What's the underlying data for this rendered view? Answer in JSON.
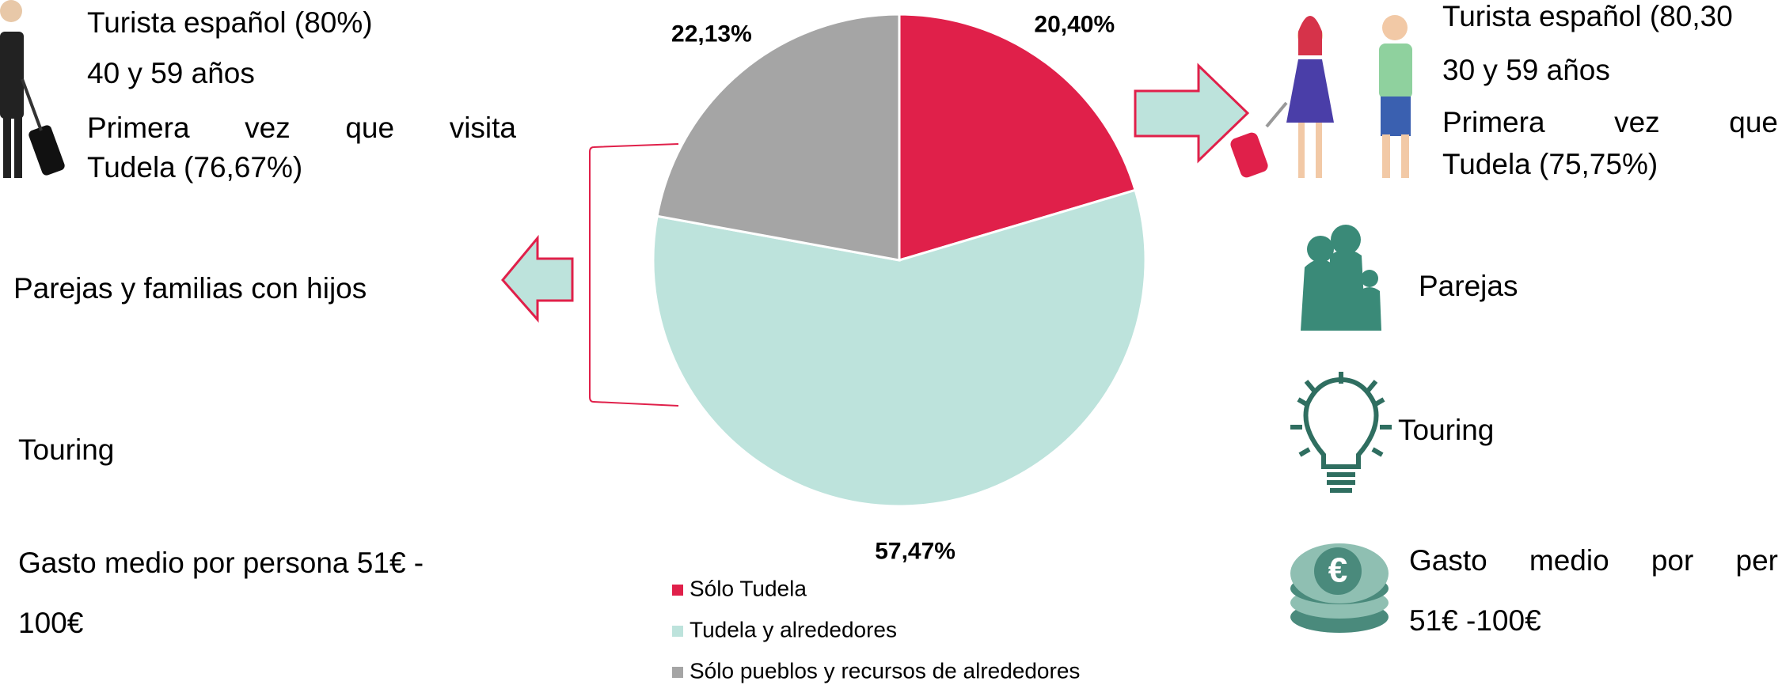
{
  "left_profile": {
    "lines": [
      "Turista español (80%)",
      "40 y 59 años",
      "Primera vez que visita",
      "Tudela (76,67%)"
    ],
    "group": "Parejas y familias con hijos",
    "trip": "Touring",
    "spend": [
      "Gasto medio por persona 51€ -",
      "100€"
    ]
  },
  "right_profile": {
    "lines": [
      "Turista español (80,30",
      "30 y 59 años",
      "Primera vez que",
      "Tudela (75,75%)"
    ],
    "group": "Parejas",
    "trip": "Touring",
    "spend": [
      "Gasto medio por per",
      "51€ -100€"
    ]
  },
  "chart_data": {
    "type": "pie",
    "categories": [
      "Sólo Tudela",
      "Tudela y alrededores",
      "Sólo pueblos y recursos de alrededores"
    ],
    "values": [
      20.4,
      57.47,
      22.13
    ],
    "value_labels": [
      "20,40%",
      "57,47%",
      "22,13%"
    ],
    "colors": [
      "#e0204a",
      "#bde3dc",
      "#a5a5a5"
    ]
  }
}
